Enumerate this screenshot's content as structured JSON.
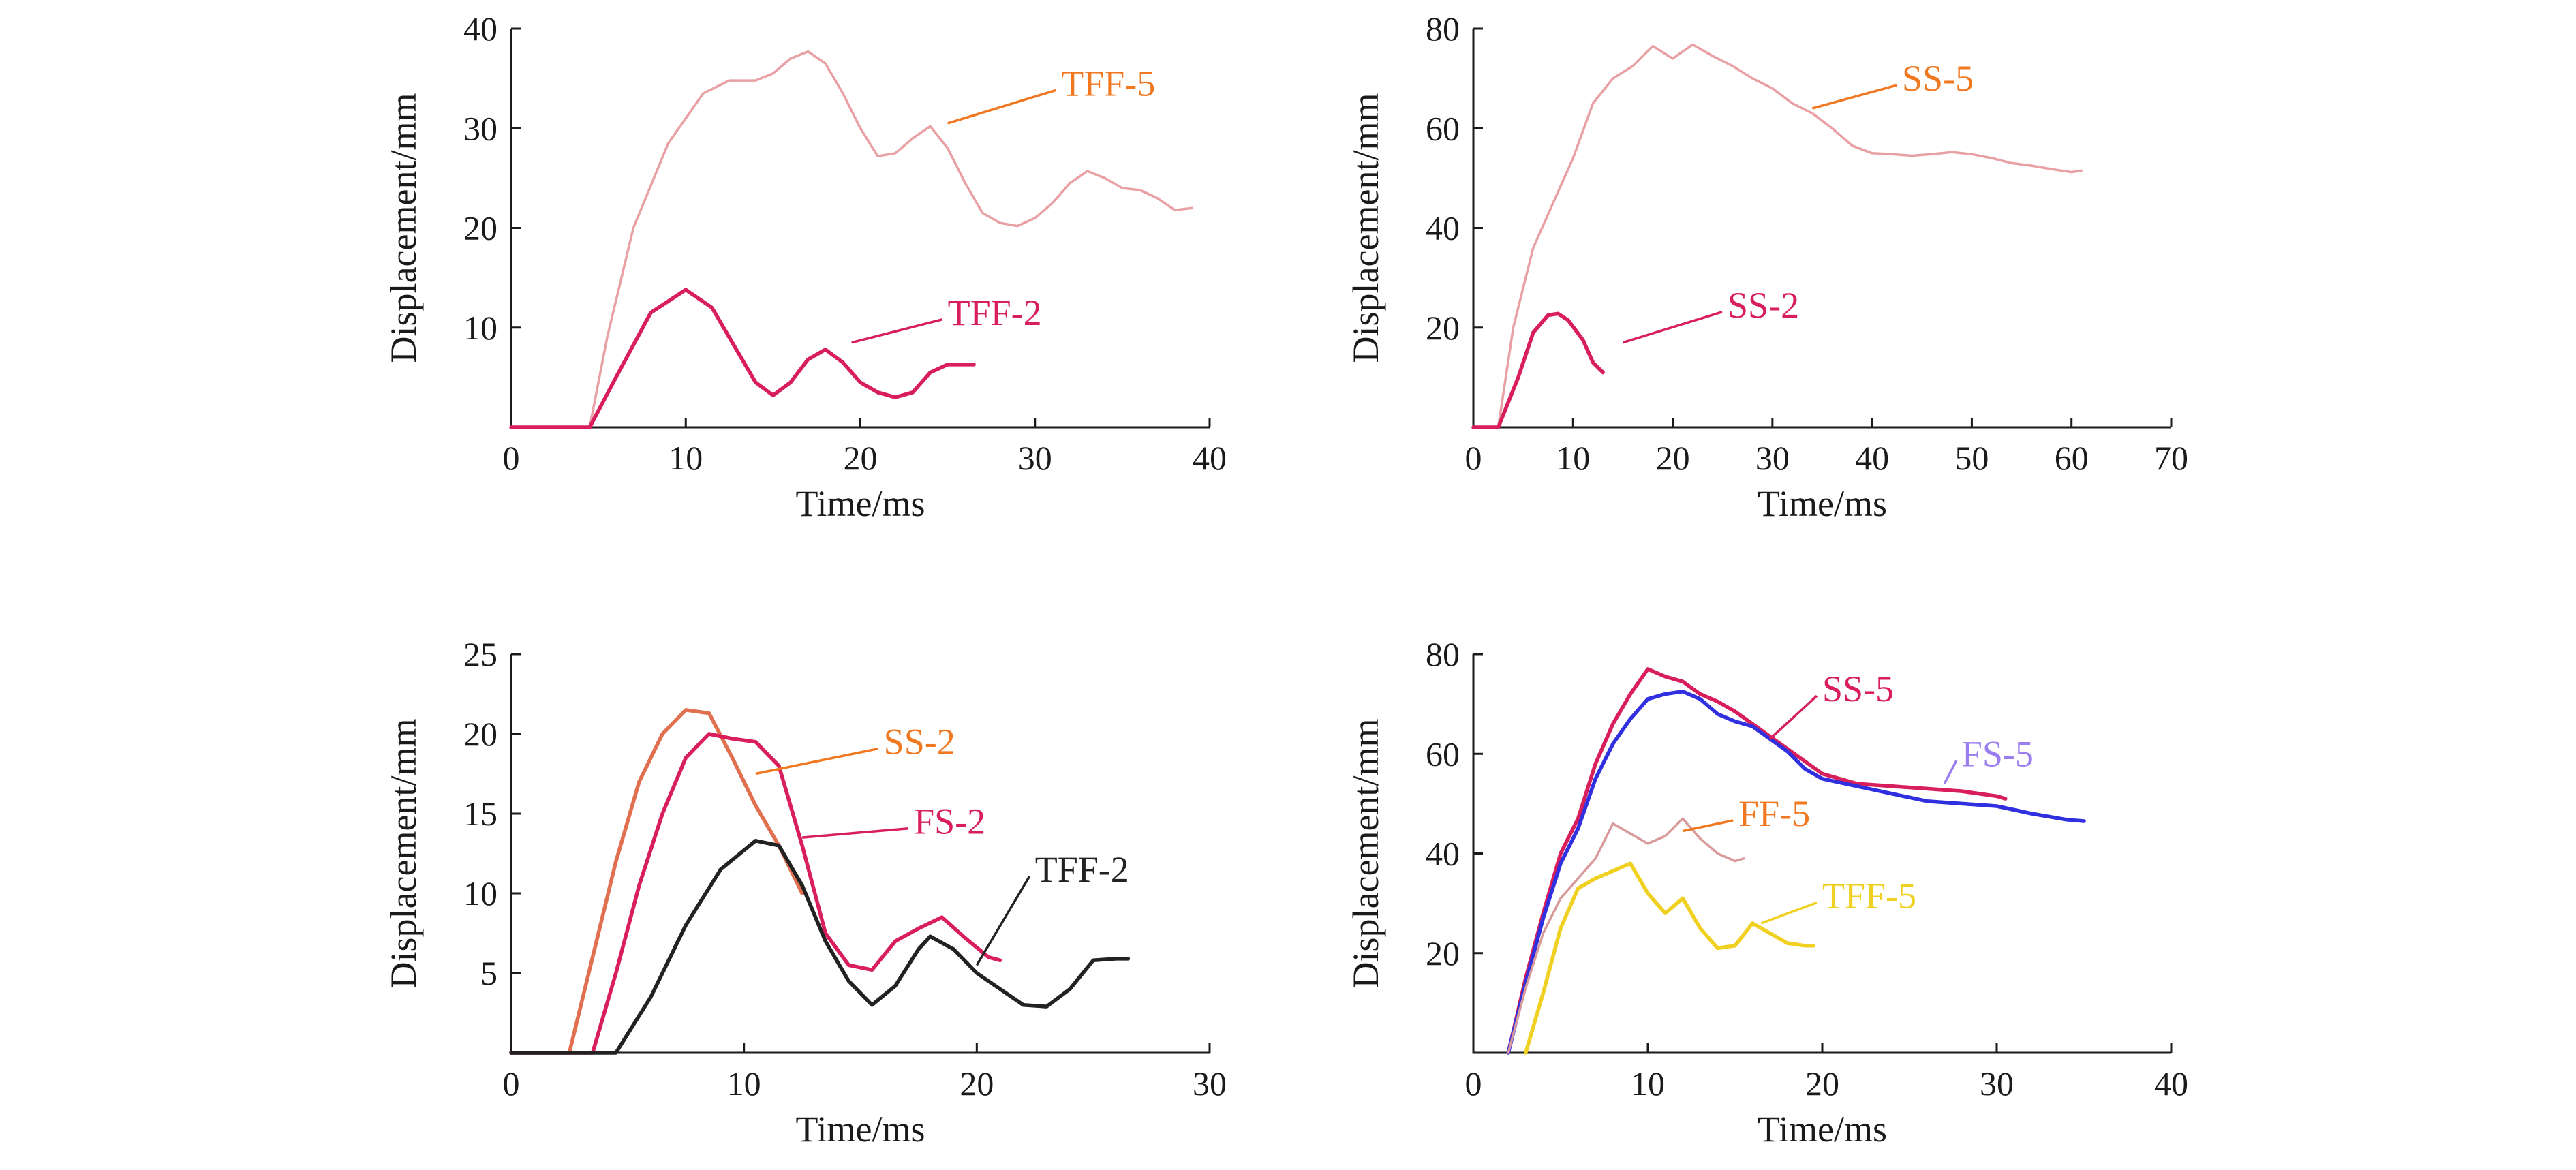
{
  "chart_data": [
    {
      "type": "line",
      "xlabel": "Time/ms",
      "ylabel": "Displacement/mm",
      "xlim": [
        0,
        40
      ],
      "ylim": [
        0,
        40
      ],
      "xticks": [
        0,
        10,
        20,
        30,
        40
      ],
      "yticks": [
        10,
        20,
        30,
        40
      ],
      "grid": false,
      "series": [
        {
          "name": "TFF-5",
          "color": "#e8a0a4",
          "x": [
            0,
            4.5,
            5.5,
            7,
            9,
            11,
            12.5,
            14,
            15,
            16,
            17,
            18,
            19,
            20,
            21,
            22,
            23,
            24,
            25,
            26,
            27,
            28,
            29,
            30,
            31,
            32,
            33,
            34,
            35,
            36,
            37,
            38,
            39
          ],
          "y": [
            0,
            0,
            9,
            20,
            28.5,
            33.5,
            34.8,
            34.8,
            35.5,
            37,
            37.7,
            36.5,
            33.5,
            30,
            27.2,
            27.5,
            29,
            30.2,
            28,
            24.5,
            21.5,
            20.5,
            20.2,
            21,
            22.5,
            24.5,
            25.7,
            25,
            24,
            23.8,
            23,
            21.8,
            22
          ]
        },
        {
          "name": "TFF-2",
          "color": "#d81e5b",
          "x": [
            0,
            4.5,
            6,
            8,
            10,
            11.5,
            13,
            14,
            15,
            16,
            17,
            18,
            19,
            20,
            21,
            22,
            23,
            24,
            25,
            26,
            26.5
          ],
          "y": [
            0,
            0,
            5,
            11.5,
            13.8,
            12,
            7.5,
            4.5,
            3.2,
            4.5,
            6.8,
            7.8,
            6.5,
            4.5,
            3.5,
            3.0,
            3.5,
            5.5,
            6.3,
            6.3,
            6.3
          ]
        }
      ],
      "annotations": [
        {
          "text": "TFF-5",
          "color": "#f07820",
          "x": 31.5,
          "y": 34.5,
          "to_x": 25,
          "to_y": 30.5
        },
        {
          "text": "TFF-2",
          "color": "#d81e5b",
          "x": 25,
          "y": 11.5,
          "to_x": 19.5,
          "to_y": 8.5
        }
      ]
    },
    {
      "type": "line",
      "xlabel": "Time/ms",
      "ylabel": "Displacement/mm",
      "xlim": [
        0,
        70
      ],
      "ylim": [
        0,
        80
      ],
      "xticks": [
        0,
        10,
        20,
        30,
        40,
        50,
        60,
        70
      ],
      "yticks": [
        20,
        40,
        60,
        80
      ],
      "grid": false,
      "series": [
        {
          "name": "SS-5",
          "color": "#e8a0a4",
          "x": [
            0,
            2.5,
            4,
            6,
            8,
            10,
            12,
            14,
            16,
            18,
            20,
            22,
            24,
            26,
            28,
            30,
            32,
            34,
            36,
            38,
            40,
            42,
            44,
            46,
            48,
            50,
            52,
            54,
            56,
            58,
            60,
            61
          ],
          "y": [
            0,
            0,
            20,
            36,
            45,
            54,
            65,
            70,
            72.5,
            76.5,
            74,
            76.8,
            74.5,
            72.5,
            70,
            68,
            65,
            63,
            60,
            56.5,
            55,
            54.8,
            54.5,
            54.8,
            55.2,
            54.8,
            54,
            53,
            52.5,
            51.8,
            51.2,
            51.5
          ]
        },
        {
          "name": "SS-2",
          "color": "#d81e5b",
          "x": [
            0,
            2.5,
            4.5,
            6,
            7.5,
            8.5,
            9.5,
            11,
            12,
            13
          ],
          "y": [
            0,
            0,
            10,
            19,
            22.5,
            22.8,
            21.5,
            17.5,
            13,
            11
          ]
        }
      ],
      "annotations": [
        {
          "text": "SS-5",
          "color": "#f07820",
          "x": 43,
          "y": 70,
          "to_x": 34,
          "to_y": 64
        },
        {
          "text": "SS-2",
          "color": "#d81e5b",
          "x": 25.5,
          "y": 24.5,
          "to_x": 15,
          "to_y": 17
        }
      ]
    },
    {
      "type": "line",
      "xlabel": "Time/ms",
      "ylabel": "Displacement/mm",
      "xlim": [
        0,
        30
      ],
      "ylim": [
        0,
        25
      ],
      "xticks": [
        0,
        10,
        20,
        30
      ],
      "yticks": [
        5,
        10,
        15,
        20,
        25
      ],
      "grid": false,
      "series": [
        {
          "name": "SS-2",
          "color": "#e07050",
          "x": [
            0,
            2.5,
            3.5,
            4.5,
            5.5,
            6.5,
            7.5,
            8.5,
            9.5,
            10.5,
            11.5,
            12.5
          ],
          "y": [
            0,
            0,
            6,
            12,
            17,
            20,
            21.5,
            21.3,
            18.5,
            15.5,
            13,
            10
          ]
        },
        {
          "name": "FS-2",
          "color": "#d81e5b",
          "x": [
            0,
            3.5,
            4.5,
            5.5,
            6.5,
            7.5,
            8.5,
            9.5,
            10.5,
            11.5,
            12.5,
            13.5,
            14.5,
            15.5,
            16.5,
            17.5,
            18.5,
            19.5,
            20.5,
            21
          ],
          "y": [
            0,
            0,
            5,
            10.5,
            15,
            18.5,
            20,
            19.7,
            19.5,
            18,
            13,
            7.5,
            5.5,
            5.2,
            7.0,
            7.8,
            8.5,
            7.2,
            6.0,
            5.8
          ]
        },
        {
          "name": "TFF-2",
          "color": "#222222",
          "x": [
            0,
            4.5,
            6,
            7.5,
            9,
            10.5,
            11.5,
            12.5,
            13.5,
            14.5,
            15.5,
            16.5,
            17.5,
            18,
            19,
            20,
            21,
            22,
            23,
            24,
            25,
            26,
            26.5
          ],
          "y": [
            0,
            0,
            3.5,
            8,
            11.5,
            13.3,
            13,
            10.5,
            7,
            4.5,
            3,
            4.2,
            6.5,
            7.3,
            6.5,
            5,
            4,
            3.0,
            2.9,
            4.0,
            5.8,
            5.9,
            5.9
          ]
        }
      ],
      "annotations": [
        {
          "text": "SS-2",
          "color": "#f07820",
          "x": 16,
          "y": 19.5,
          "to_x": 10.5,
          "to_y": 17.5
        },
        {
          "text": "FS-2",
          "color": "#d81e5b",
          "x": 17.3,
          "y": 14.5,
          "to_x": 12.5,
          "to_y": 13.5
        },
        {
          "text": "TFF-2",
          "color": "#222222",
          "x": 22.5,
          "y": 11.5,
          "to_x": 20,
          "to_y": 5.5
        }
      ]
    },
    {
      "type": "line",
      "xlabel": "Time/ms",
      "ylabel": "Displacement/mm",
      "xlim": [
        0,
        40
      ],
      "ylim": [
        0,
        80
      ],
      "xticks": [
        0,
        10,
        20,
        30,
        40
      ],
      "yticks": [
        20,
        40,
        60,
        80
      ],
      "grid": false,
      "series": [
        {
          "name": "SS-5",
          "color": "#d81e5b",
          "x": [
            2,
            3,
            4,
            5,
            6,
            7,
            8,
            9,
            10,
            11,
            12,
            13,
            14,
            15,
            16,
            17,
            18,
            19,
            20,
            22,
            24,
            26,
            28,
            30,
            30.5
          ],
          "y": [
            0,
            15,
            28,
            40,
            47,
            58,
            66,
            72,
            77,
            75.5,
            74.5,
            72,
            70.5,
            68.5,
            66,
            63.5,
            61,
            58.5,
            56,
            54,
            53.5,
            53,
            52.5,
            51.5,
            51
          ]
        },
        {
          "name": "FS-5",
          "color": "#3030e0",
          "x": [
            2,
            3,
            4,
            5,
            6,
            7,
            8,
            9,
            10,
            11,
            12,
            13,
            14,
            15,
            16,
            17,
            18,
            19,
            20,
            22,
            24,
            26,
            28,
            30,
            32,
            34,
            35
          ],
          "y": [
            0,
            14,
            27,
            38,
            45,
            55,
            62,
            67,
            71,
            72,
            72.5,
            71,
            68,
            66.5,
            65.5,
            63,
            60.5,
            57,
            55,
            53.5,
            52,
            50.5,
            50,
            49.5,
            48,
            46.8,
            46.5
          ]
        },
        {
          "name": "FF-5",
          "color": "#d89a9a",
          "x": [
            2,
            3,
            4,
            5,
            6,
            7,
            8,
            9,
            10,
            11,
            12,
            13,
            14,
            15,
            15.5
          ],
          "y": [
            0,
            13,
            24,
            31,
            35,
            39,
            46,
            44,
            42,
            43.5,
            47,
            43,
            40,
            38.5,
            39
          ]
        },
        {
          "name": "TFF-5",
          "color": "#f0d020",
          "x": [
            3,
            4,
            5,
            6,
            7,
            8,
            9,
            10,
            11,
            12,
            13,
            14,
            15,
            16,
            17,
            18,
            19,
            19.5
          ],
          "y": [
            0,
            12,
            25,
            33,
            35,
            36.5,
            38,
            32,
            28,
            31,
            25,
            21,
            21.5,
            26,
            24,
            22,
            21.5,
            21.5
          ]
        }
      ],
      "annotations": [
        {
          "text": "SS-5",
          "color": "#d81e5b",
          "x": 20,
          "y": 73,
          "to_x": 17,
          "to_y": 63
        },
        {
          "text": "FS-5",
          "color": "#9a7ef0",
          "x": 28,
          "y": 60,
          "to_x": 27,
          "to_y": 54
        },
        {
          "text": "FF-5",
          "color": "#f07820",
          "x": 15.2,
          "y": 48,
          "to_x": 12,
          "to_y": 44.5
        },
        {
          "text": "TFF-5",
          "color": "#f0d020",
          "x": 20,
          "y": 31.5,
          "to_x": 16.5,
          "to_y": 26
        }
      ]
    }
  ]
}
